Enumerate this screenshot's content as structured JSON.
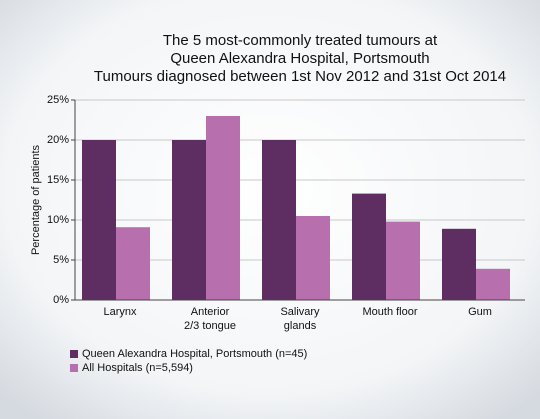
{
  "chart_data": {
    "type": "bar",
    "title": [
      "The 5 most-commonly treated tumours at",
      "Queen Alexandra Hospital, Portsmouth",
      "Tumours diagnosed between 1st Nov 2012 and 31st Oct 2014"
    ],
    "y_label": "Percentage of patients",
    "categories": [
      "Larynx",
      "Anterior\n2/3 tongue",
      "Salivary\nglands",
      "Mouth floor",
      "Gum"
    ],
    "series": [
      {
        "name": "Queen Alexandra Hospital, Portsmouth (n=45)",
        "color": "#5e2d62",
        "values": [
          20,
          20,
          20,
          13.3,
          8.9
        ]
      },
      {
        "name": "All Hospitals (n=5,594)",
        "color": "#b770ad",
        "values": [
          9.1,
          23,
          10.5,
          9.8,
          3.9
        ]
      }
    ],
    "ylim": [
      0,
      25
    ],
    "yticks": [
      {
        "value": 0,
        "label": "0%"
      },
      {
        "value": 5,
        "label": "5%"
      },
      {
        "value": 10,
        "label": "10%"
      },
      {
        "value": 15,
        "label": "15%"
      },
      {
        "value": 20,
        "label": "20%"
      },
      {
        "value": 25,
        "label": "25%"
      }
    ],
    "grid": true,
    "legend": "bottom"
  }
}
